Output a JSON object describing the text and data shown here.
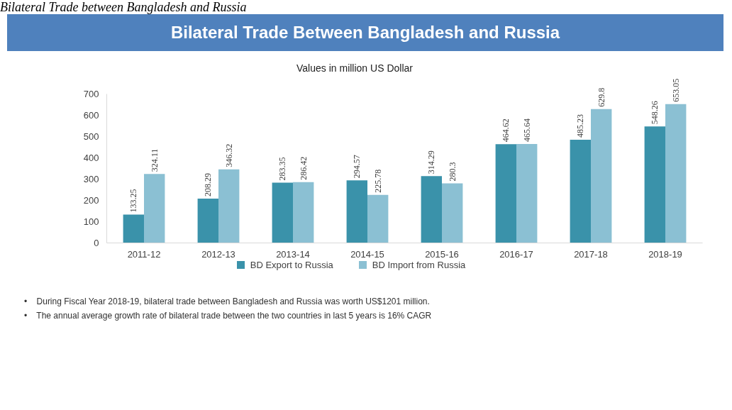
{
  "chart_data": {
    "type": "bar",
    "title": "Bilateral Trade  Between Bangladesh and Russia",
    "subtitle": "Values in million US Dollar",
    "categories": [
      "2011-12",
      "2012-13",
      "2013-14",
      "2014-15",
      "2015-16",
      "2016-17",
      "2017-18",
      "2018-19"
    ],
    "series": [
      {
        "name": "BD Export to Russia",
        "color": "#3a92aa",
        "values": [
          133.25,
          208.29,
          283.35,
          294.57,
          314.29,
          464.62,
          485.23,
          548.26
        ]
      },
      {
        "name": "BD Import from Russia",
        "color": "#8bc0d3",
        "values": [
          324.11,
          346.32,
          286.42,
          225.78,
          280.3,
          465.64,
          629.8,
          653.05
        ]
      }
    ],
    "ylim": [
      0,
      700
    ],
    "yticks": [
      0,
      100,
      200,
      300,
      400,
      500,
      600,
      700
    ],
    "grid": false,
    "legend": "bottom",
    "data_labels": true,
    "annotations": [
      "Bilateral Trade between Bangladesh and Russia",
      "•    During Fiscal Year 2018-19, bilateral trade between Bangladesh and Russia was worth US$1201 million.",
      "•    The annual average growth rate of bilateral trade between the two countries in last 5 years is 16% CAGR"
    ]
  }
}
